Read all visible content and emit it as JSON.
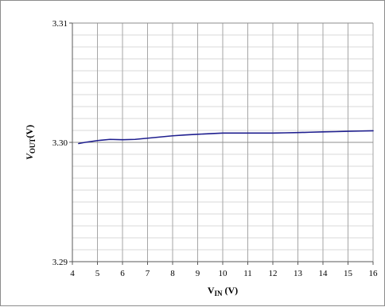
{
  "chart_data": {
    "type": "line",
    "title": "",
    "xlabel": {
      "main": "V",
      "sub": "IN",
      "unit": " (V)"
    },
    "ylabel": {
      "main": "V",
      "sub": "OUT",
      "unit": "(V)"
    },
    "xlim": [
      4,
      16
    ],
    "ylim": [
      3.29,
      3.31
    ],
    "x_ticks": [
      4,
      5,
      6,
      7,
      8,
      9,
      10,
      11,
      12,
      13,
      14,
      15,
      16
    ],
    "y_ticks": [
      "3.29",
      "3.30",
      "3.31"
    ],
    "y_minor_step": 0.001,
    "grid": "on",
    "legend": "none",
    "series": [
      {
        "color": "#1f1f8f",
        "x": [
          4.25,
          4.5,
          5.0,
          5.5,
          6.0,
          6.5,
          7.0,
          7.5,
          8.0,
          8.5,
          9.0,
          9.5,
          10.0,
          10.5,
          11.0,
          11.5,
          12.0,
          12.5,
          13.0,
          13.5,
          14.0,
          14.5,
          15.0,
          15.5,
          16.0
        ],
        "y": [
          3.2999,
          3.3,
          3.30015,
          3.30025,
          3.30022,
          3.30025,
          3.30035,
          3.30045,
          3.30055,
          3.30062,
          3.30068,
          3.30073,
          3.30078,
          3.30078,
          3.30078,
          3.30078,
          3.30078,
          3.3008,
          3.30082,
          3.30085,
          3.30088,
          3.3009,
          3.30093,
          3.30095,
          3.30097
        ]
      }
    ]
  }
}
